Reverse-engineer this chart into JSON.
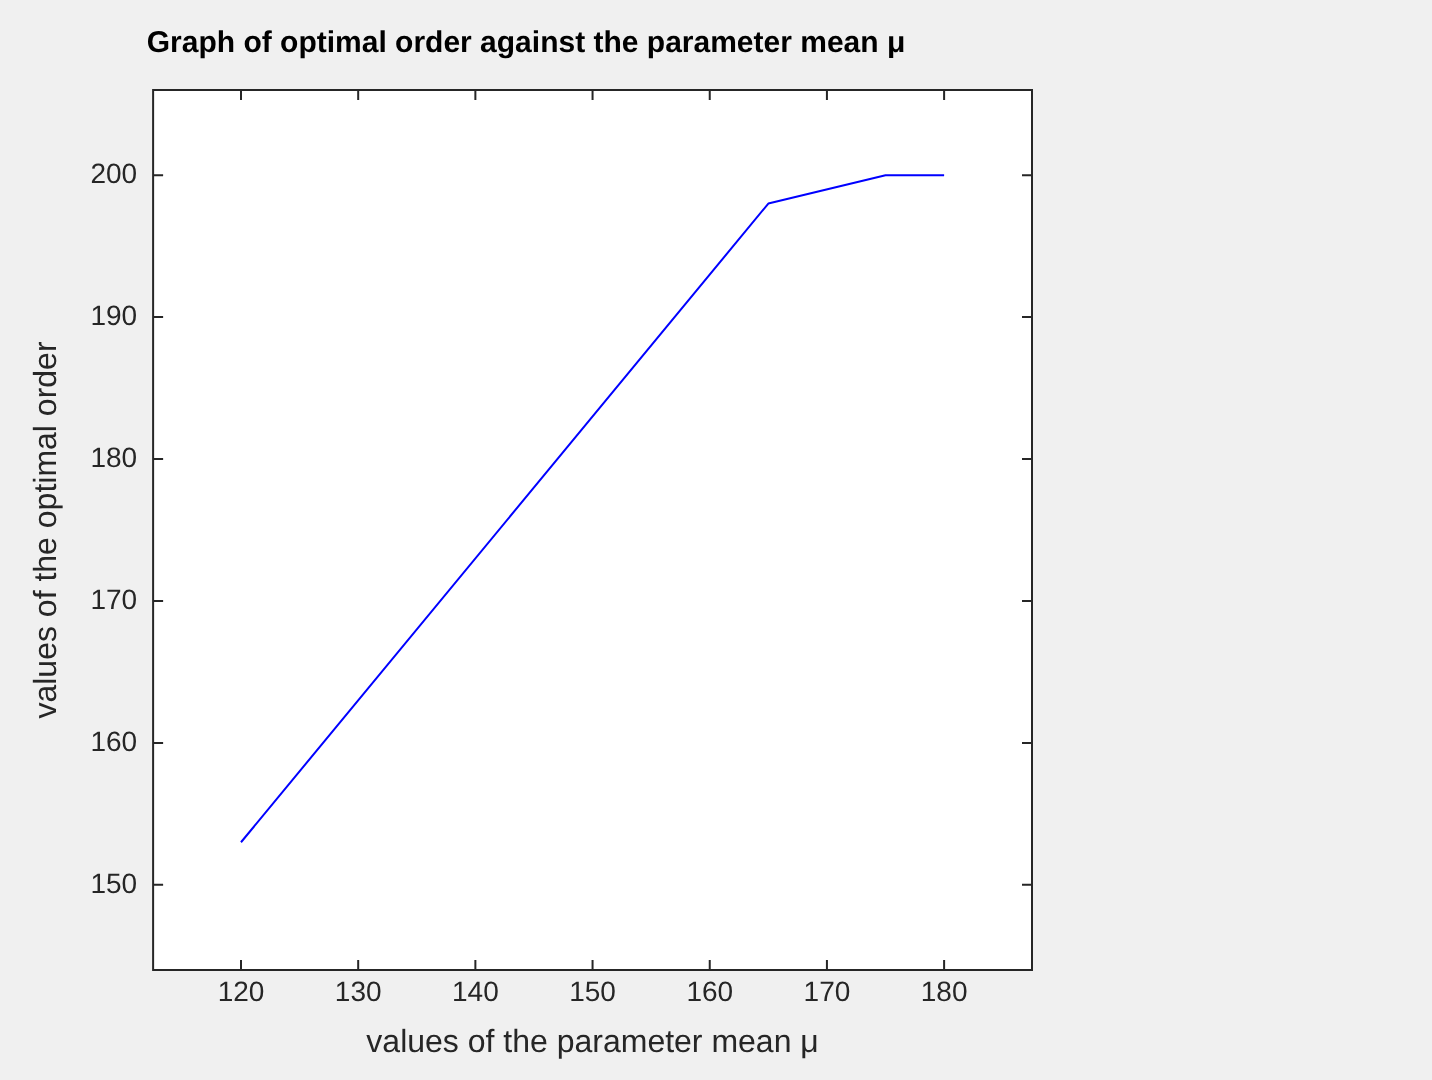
{
  "chart_data": {
    "type": "line",
    "title": "Graph of optimal order against the parameter mean μ",
    "xlabel": "values of the parameter mean μ",
    "ylabel": "values of the optimal order",
    "x": [
      120,
      165,
      175,
      180
    ],
    "series": [
      {
        "color": "#0000ff",
        "values": [
          153,
          198,
          200,
          200
        ]
      }
    ],
    "xlim": [
      112.5,
      187.5
    ],
    "xticks": [
      120,
      130,
      140,
      150,
      160,
      170,
      180
    ],
    "ylim": [
      144,
      206
    ],
    "yticks": [
      150,
      160,
      170,
      180,
      190,
      200
    ],
    "grid": false,
    "legend": false,
    "marker": "none",
    "line_style": "solid"
  }
}
